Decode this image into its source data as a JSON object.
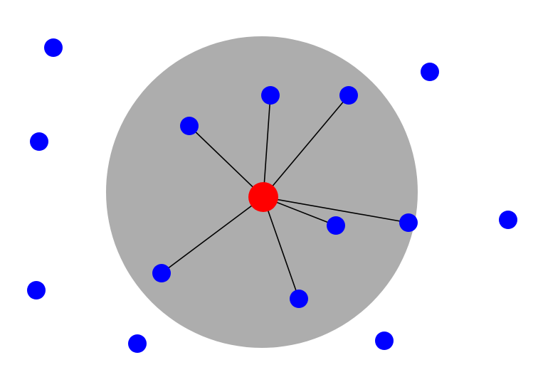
{
  "diagram": {
    "type": "radius-neighbor-graph",
    "colors": {
      "background": "#ffffff",
      "neighborhood": "#adadad",
      "center_node": "#ff0000",
      "node": "#0000ff",
      "edge": "#000000"
    },
    "center_node": {
      "id": "center"
    },
    "nodes": [
      {
        "id": "n1",
        "connected": false
      },
      {
        "id": "n2",
        "connected": true
      },
      {
        "id": "n3",
        "connected": true
      },
      {
        "id": "n4",
        "connected": true
      },
      {
        "id": "n5",
        "connected": false
      },
      {
        "id": "n6",
        "connected": false
      },
      {
        "id": "n7",
        "connected": true
      },
      {
        "id": "n8",
        "connected": true
      },
      {
        "id": "n9",
        "connected": false
      },
      {
        "id": "n10",
        "connected": true
      },
      {
        "id": "n11",
        "connected": true
      },
      {
        "id": "n12",
        "connected": false
      },
      {
        "id": "n13",
        "connected": false
      },
      {
        "id": "n14",
        "connected": false
      }
    ]
  }
}
